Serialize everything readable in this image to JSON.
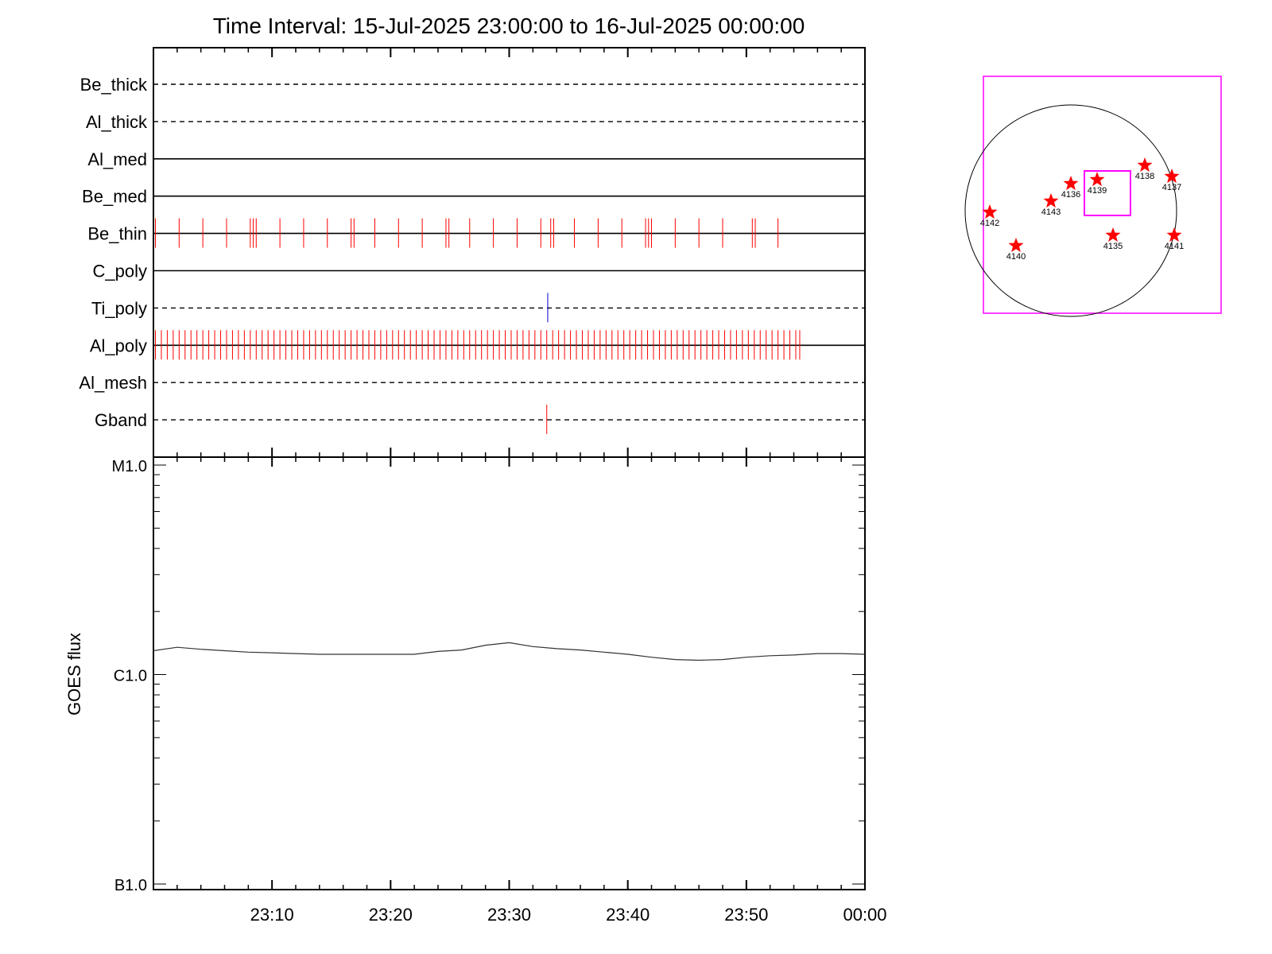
{
  "title": "Time Interval: 15-Jul-2025 23:00:00 to 16-Jul-2025 00:00:00",
  "colors": {
    "axes": "#000000",
    "event_red": "#ff0000",
    "event_blue": "#0000cc",
    "flux_line": "#333333",
    "fov_box": "#ff00ff",
    "star": "#ff0000"
  },
  "chart_data": [
    {
      "type": "line",
      "x_axis": {
        "start": "23:00",
        "end": "00:00",
        "tick_labels": [
          "23:10",
          "23:20",
          "23:30",
          "23:40",
          "23:50",
          "00:00"
        ]
      },
      "rows": [
        {
          "label": "Be_thick",
          "style": "dashed",
          "events": [],
          "event_color": "#ff0000"
        },
        {
          "label": "Al_thick",
          "style": "dashed",
          "events": [],
          "event_color": "#ff0000"
        },
        {
          "label": "Al_med",
          "style": "solid",
          "events": [],
          "event_color": "#ff0000"
        },
        {
          "label": "Be_med",
          "style": "solid",
          "events": [],
          "event_color": "#ff0000"
        },
        {
          "label": "Be_thin",
          "style": "solid",
          "event_color": "#ff0000",
          "events": [
            "23:00:10",
            "23:02:10",
            "23:04:10",
            "23:06:10",
            "23:08:10",
            "23:08:25",
            "23:08:40",
            "23:10:40",
            "23:12:40",
            "23:14:40",
            "23:16:40",
            "23:16:55",
            "23:18:40",
            "23:20:40",
            "23:22:40",
            "23:24:40",
            "23:24:55",
            "23:26:40",
            "23:28:40",
            "23:30:40",
            "23:32:40",
            "23:33:30",
            "23:33:45",
            "23:35:30",
            "23:37:30",
            "23:39:30",
            "23:41:30",
            "23:41:45",
            "23:42:00",
            "23:44:00",
            "23:46:00",
            "23:48:00",
            "23:50:30",
            "23:50:45",
            "23:52:40"
          ]
        },
        {
          "label": "C_poly",
          "style": "solid",
          "events": [],
          "event_color": "#ff0000"
        },
        {
          "label": "Ti_poly",
          "style": "dashed",
          "event_color": "#0000cc",
          "events": [
            "23:33:15"
          ]
        },
        {
          "label": "Al_poly",
          "style": "solid",
          "event_color": "#ff0000",
          "events": [
            "23:00:10",
            "23:00:40",
            "23:01:10",
            "23:01:40",
            "23:02:10",
            "23:02:40",
            "23:03:10",
            "23:03:40",
            "23:04:10",
            "23:04:40",
            "23:05:10",
            "23:05:40",
            "23:06:10",
            "23:06:40",
            "23:07:10",
            "23:07:40",
            "23:08:10",
            "23:08:40",
            "23:09:10",
            "23:09:40",
            "23:10:10",
            "23:10:40",
            "23:11:10",
            "23:11:40",
            "23:12:10",
            "23:12:40",
            "23:13:10",
            "23:13:40",
            "23:14:10",
            "23:14:40",
            "23:15:10",
            "23:15:40",
            "23:16:10",
            "23:16:40",
            "23:17:10",
            "23:17:40",
            "23:18:10",
            "23:18:40",
            "23:19:10",
            "23:19:40",
            "23:20:10",
            "23:20:40",
            "23:21:10",
            "23:21:40",
            "23:22:10",
            "23:22:40",
            "23:23:10",
            "23:23:40",
            "23:24:10",
            "23:24:40",
            "23:25:10",
            "23:25:40",
            "23:26:10",
            "23:26:40",
            "23:27:10",
            "23:27:40",
            "23:28:10",
            "23:28:40",
            "23:29:10",
            "23:29:40",
            "23:30:10",
            "23:30:40",
            "23:31:10",
            "23:31:40",
            "23:32:10",
            "23:32:40",
            "23:33:10",
            "23:33:40",
            "23:34:10",
            "23:34:40",
            "23:35:10",
            "23:35:40",
            "23:36:10",
            "23:36:40",
            "23:37:10",
            "23:37:40",
            "23:38:10",
            "23:38:40",
            "23:39:10",
            "23:39:40",
            "23:40:10",
            "23:40:40",
            "23:41:10",
            "23:41:40",
            "23:42:10",
            "23:42:40",
            "23:43:10",
            "23:43:40",
            "23:44:10",
            "23:44:40",
            "23:45:10",
            "23:45:40",
            "23:46:10",
            "23:46:40",
            "23:47:10",
            "23:47:40",
            "23:48:10",
            "23:48:40",
            "23:49:10",
            "23:49:40",
            "23:50:10",
            "23:50:40",
            "23:51:10",
            "23:51:40",
            "23:52:10",
            "23:52:40",
            "23:53:10",
            "23:53:40",
            "23:54:10",
            "23:54:30"
          ]
        },
        {
          "label": "Al_mesh",
          "style": "dashed",
          "events": [],
          "event_color": "#ff0000"
        },
        {
          "label": "Gband",
          "style": "dashed",
          "event_color": "#ff0000",
          "events": [
            "23:33:10"
          ]
        }
      ]
    },
    {
      "type": "line",
      "ylabel": "GOES flux",
      "y_scale": "log",
      "y_tick_labels": [
        "M1.0",
        "C1.0",
        "B1.0"
      ],
      "ylim": [
        "B1.0",
        "M1.0"
      ],
      "series": [
        {
          "x": [
            "23:00",
            "23:02",
            "23:04",
            "23:06",
            "23:08",
            "23:10",
            "23:12",
            "23:14",
            "23:16",
            "23:18",
            "23:20",
            "23:22",
            "23:24",
            "23:26",
            "23:28",
            "23:30",
            "23:32",
            "23:34",
            "23:36",
            "23:38",
            "23:40",
            "23:42",
            "23:44",
            "23:46",
            "23:48",
            "23:50",
            "23:52",
            "23:54",
            "23:56",
            "23:58",
            "00:00"
          ],
          "values": [
            "C1.3",
            "C1.35",
            "C1.32",
            "C1.3",
            "C1.28",
            "C1.27",
            "C1.26",
            "C1.25",
            "C1.25",
            "C1.25",
            "C1.25",
            "C1.25",
            "C1.29",
            "C1.31",
            "C1.38",
            "C1.42",
            "C1.36",
            "C1.33",
            "C1.31",
            "C1.28",
            "C1.25",
            "C1.21",
            "C1.18",
            "C1.17",
            "C1.18",
            "C1.21",
            "C1.23",
            "C1.24",
            "C1.26",
            "C1.26",
            "C1.25"
          ]
        }
      ]
    }
  ],
  "sun_map": {
    "regions": [
      {
        "label": "4142"
      },
      {
        "label": "4143"
      },
      {
        "label": "4136"
      },
      {
        "label": "4139"
      },
      {
        "label": "4138"
      },
      {
        "label": "4137"
      },
      {
        "label": "4140"
      },
      {
        "label": "4135"
      },
      {
        "label": "4141"
      }
    ]
  }
}
